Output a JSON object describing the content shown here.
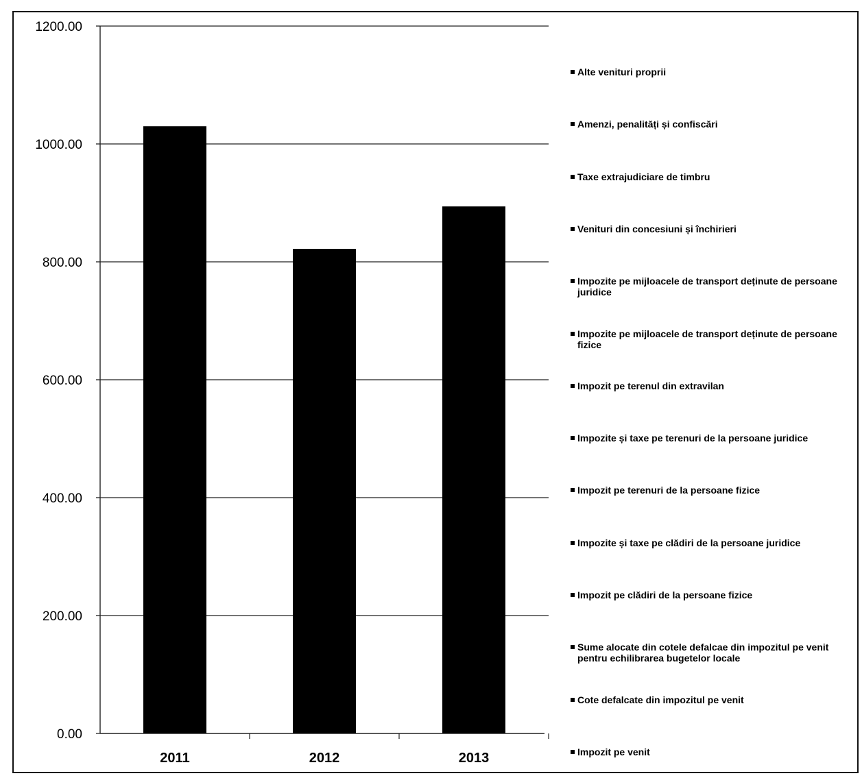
{
  "chart_data": {
    "type": "bar",
    "title": "",
    "xlabel": "",
    "ylabel": "",
    "categories": [
      "2011",
      "2012",
      "2013"
    ],
    "values": [
      1030,
      822,
      894
    ],
    "ylim": [
      0,
      1200
    ],
    "yticks": [
      0,
      200,
      400,
      600,
      800,
      1000,
      1200
    ],
    "ytick_labels": [
      "0.00",
      "200.00",
      "400.00",
      "600.00",
      "800.00",
      "1000.00",
      "1200.00"
    ],
    "grid": true,
    "bar_color": "#000000",
    "legend_position": "right",
    "legend": [
      "Alte venituri proprii",
      "Amenzi, penalități și confiscări",
      "Taxe extrajudiciare de timbru",
      "Venituri din concesiuni și închirieri",
      "Impozite pe mijloacele de transport deținute de persoane juridice",
      "Impozite pe mijloacele de transport deținute de persoane fizice",
      "Impozit pe terenul din extravilan",
      "Impozite și taxe pe terenuri de la persoane juridice",
      "Impozit pe terenuri de la persoane fizice",
      "Impozite și taxe pe clădiri de la persoane juridice",
      "Impozit pe clădiri de la persoane fizice",
      "Sume alocate din cotele defalcae din impozitul pe venit pentru echilibrarea bugetelor locale",
      "Cote defalcate din impozitul pe venit",
      "Impozit pe venit"
    ]
  }
}
